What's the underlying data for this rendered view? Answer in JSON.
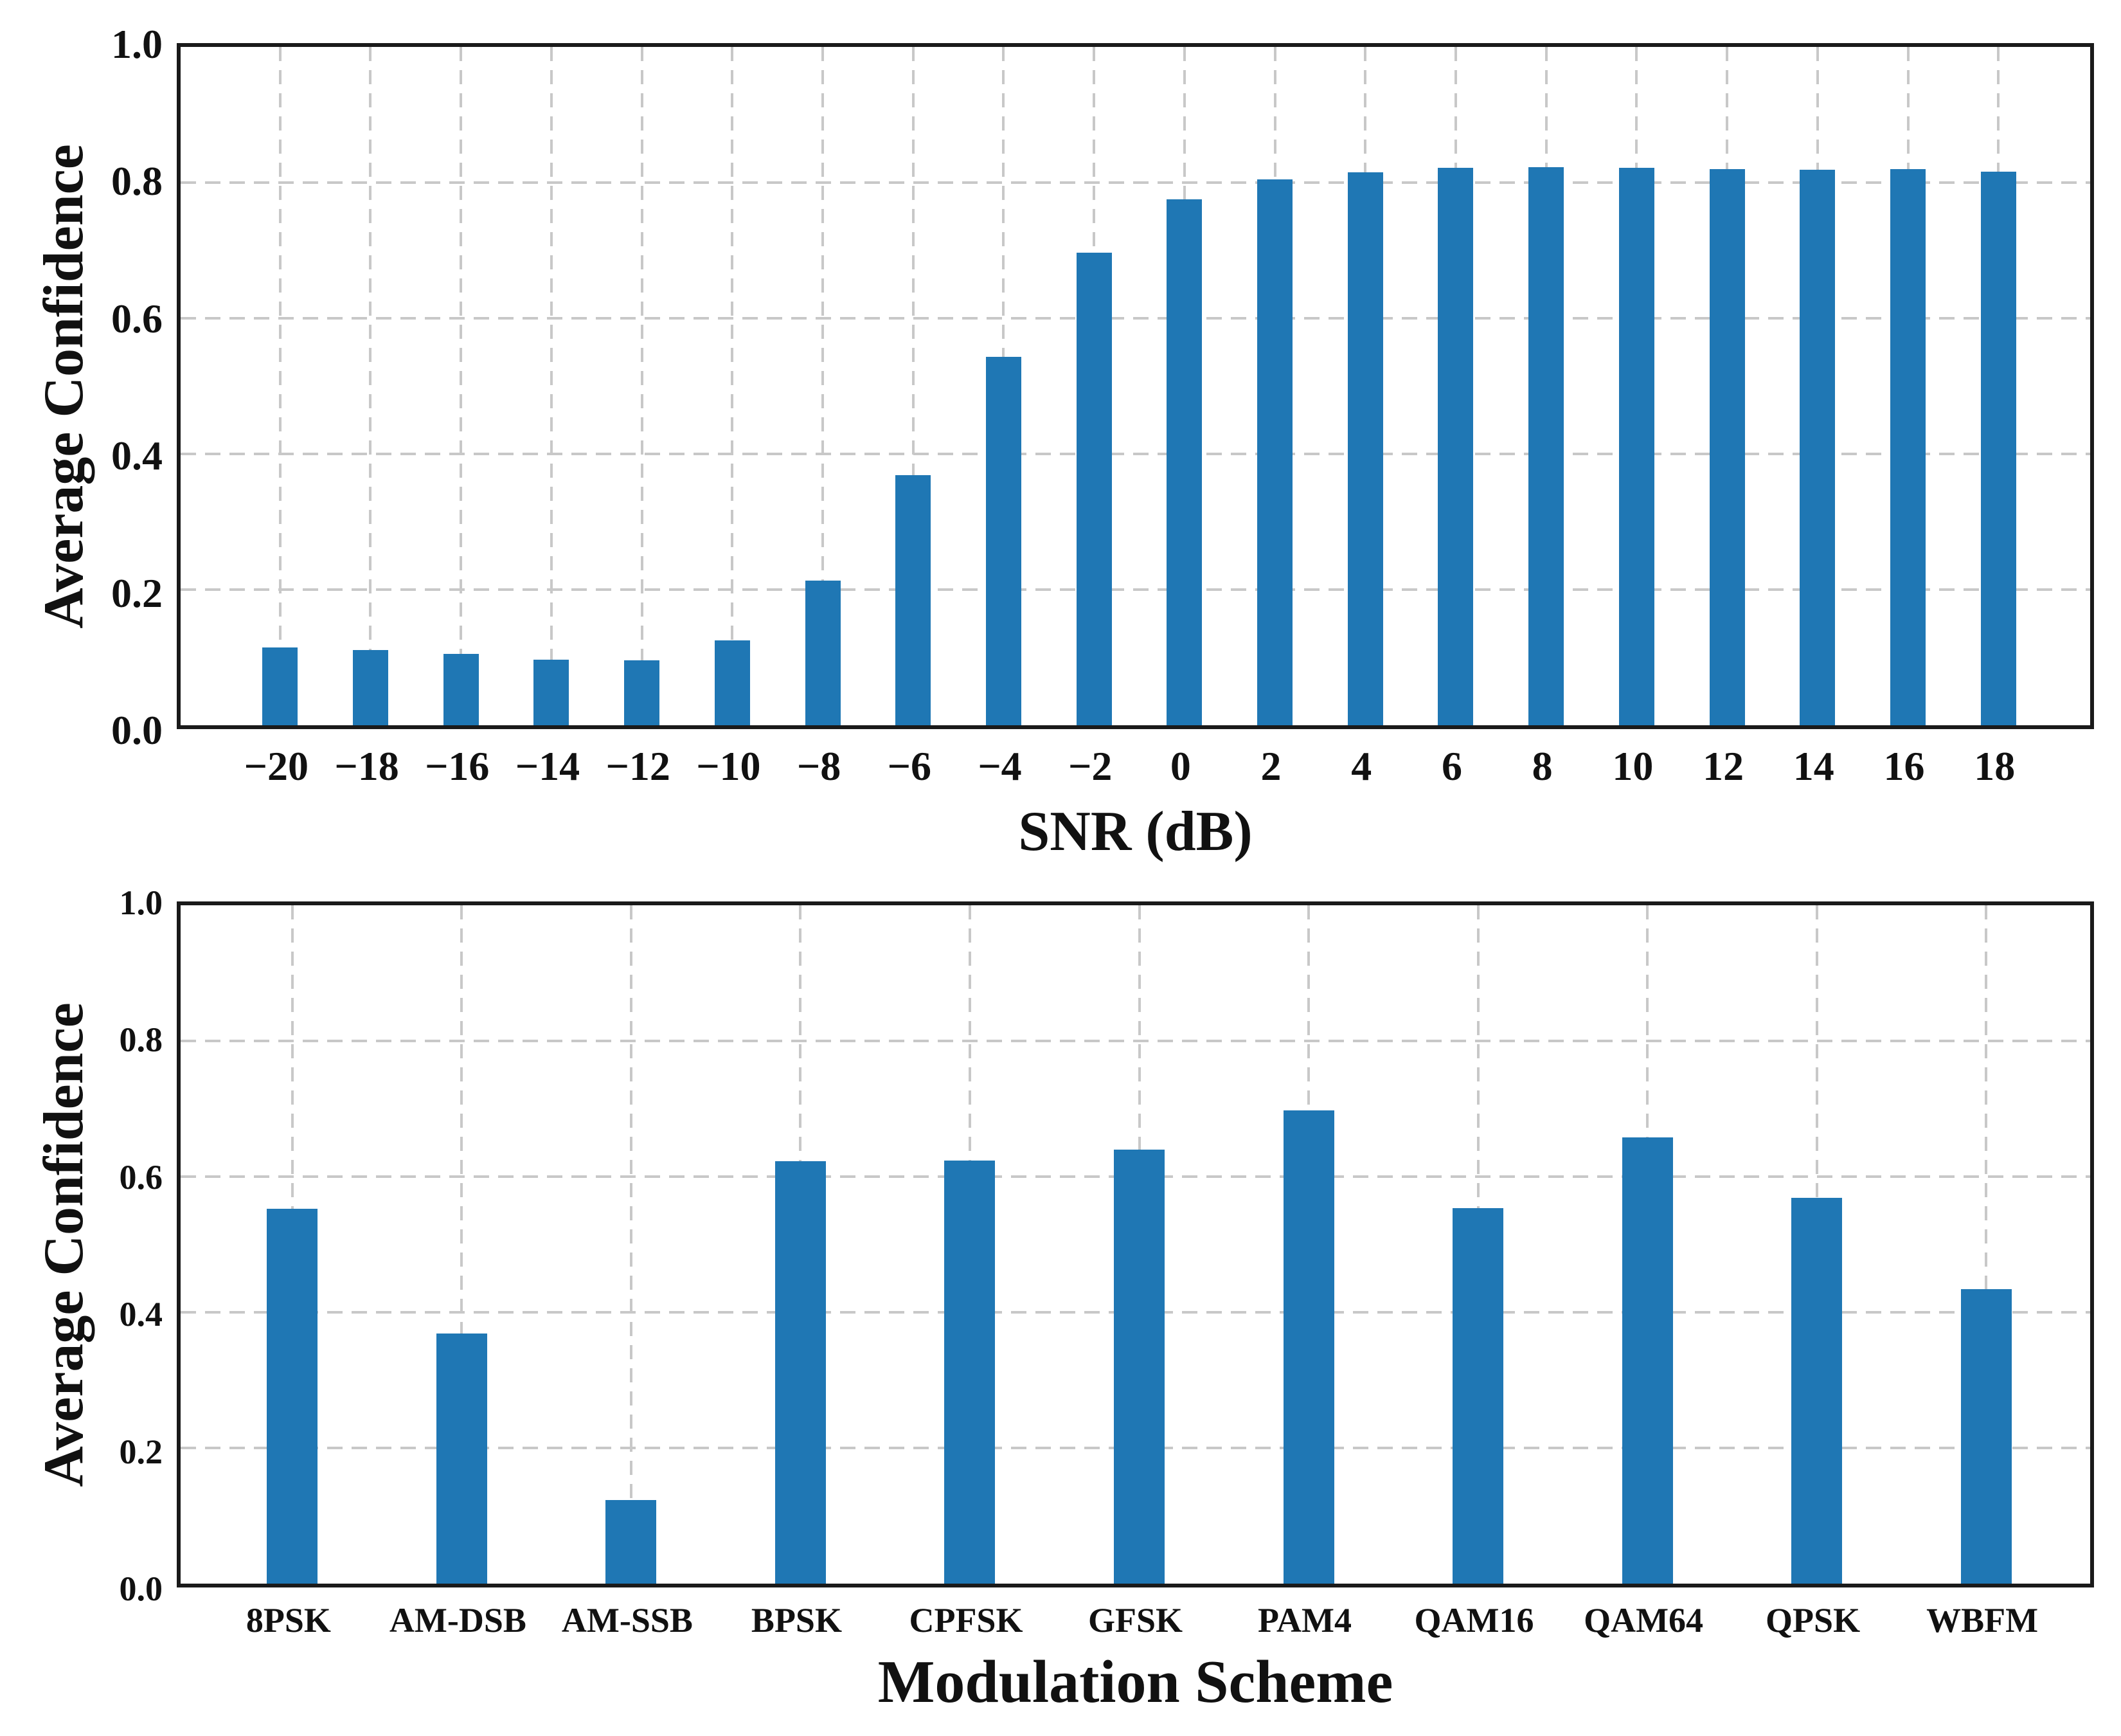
{
  "figure": {
    "background": "#ffffff",
    "bar_color": "#1f77b4",
    "grid_color": "#c8c8c8",
    "axis_color": "#1a1a1a",
    "text_color": "#111111"
  },
  "chart_data": [
    {
      "type": "bar",
      "title": "",
      "xlabel": "SNR (dB)",
      "ylabel": "Average Confidence",
      "categories": [
        -20,
        -18,
        -16,
        -14,
        -12,
        -10,
        -8,
        -6,
        -4,
        -2,
        0,
        2,
        4,
        6,
        8,
        10,
        12,
        14,
        16,
        18
      ],
      "x_tick_labels": [
        "−20",
        "−18",
        "−16",
        "−14",
        "−12",
        "−10",
        "−8",
        "−6",
        "−4",
        "−2",
        "0",
        "2",
        "4",
        "6",
        "8",
        "10",
        "12",
        "14",
        "16",
        "18"
      ],
      "values": [
        0.115,
        0.111,
        0.105,
        0.097,
        0.096,
        0.125,
        0.213,
        0.369,
        0.543,
        0.697,
        0.775,
        0.805,
        0.815,
        0.822,
        0.823,
        0.822,
        0.82,
        0.819,
        0.82,
        0.816
      ],
      "ylim": [
        0.0,
        1.0
      ],
      "y_tick_labels": [
        "0.0",
        "0.2",
        "0.4",
        "0.6",
        "0.8",
        "1.0"
      ],
      "y_ticks": [
        0.0,
        0.2,
        0.4,
        0.6,
        0.8,
        1.0
      ],
      "grid": "dashed",
      "legend": "none"
    },
    {
      "type": "bar",
      "title": "",
      "xlabel": "Modulation Scheme",
      "ylabel": "Average Confidence",
      "categories": [
        "8PSK",
        "AM-DSB",
        "AM-SSB",
        "BPSK",
        "CPFSK",
        "GFSK",
        "PAM4",
        "QAM16",
        "QAM64",
        "QPSK",
        "WBFM"
      ],
      "x_tick_labels": [
        "8PSK",
        "AM-DSB",
        "AM-SSB",
        "BPSK",
        "CPFSK",
        "GFSK",
        "PAM4",
        "QAM16",
        "QAM64",
        "QPSK",
        "WBFM"
      ],
      "values": [
        0.553,
        0.369,
        0.123,
        0.623,
        0.624,
        0.64,
        0.698,
        0.554,
        0.658,
        0.569,
        0.434
      ],
      "ylim": [
        0.0,
        1.0
      ],
      "y_tick_labels": [
        "0.0",
        "0.2",
        "0.4",
        "0.6",
        "0.8",
        "1.0"
      ],
      "y_ticks": [
        0.0,
        0.2,
        0.4,
        0.6,
        0.8,
        1.0
      ],
      "grid": "dashed",
      "legend": "none"
    }
  ]
}
